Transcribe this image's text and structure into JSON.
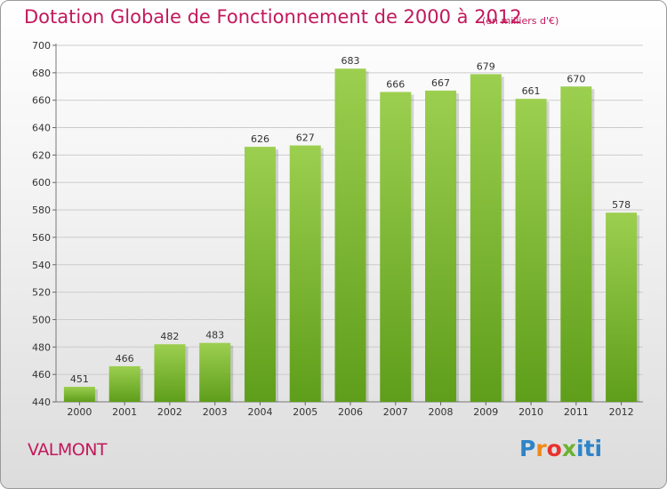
{
  "chart_data": {
    "type": "bar",
    "title": "Dotation Globale de Fonctionnement de 2000 à 2012",
    "unit_note": "(en milliers d'€)",
    "categories": [
      "2000",
      "2001",
      "2002",
      "2003",
      "2004",
      "2005",
      "2006",
      "2007",
      "2008",
      "2009",
      "2010",
      "2011",
      "2012"
    ],
    "values": [
      451,
      466,
      482,
      483,
      626,
      627,
      683,
      666,
      667,
      679,
      661,
      670,
      578
    ],
    "ylim": [
      440,
      700
    ],
    "yticks": [
      440,
      460,
      480,
      500,
      520,
      540,
      560,
      580,
      600,
      620,
      640,
      660,
      680,
      700
    ],
    "xlabel": "",
    "ylabel": "",
    "grid": true,
    "bar_color_top": "#9ccf4f",
    "bar_color_bottom": "#5e9e1a"
  },
  "commune": "VALMONT",
  "logo": {
    "letters": [
      "P",
      "r",
      "o",
      "x",
      "iti"
    ],
    "colors": [
      "#2f84c8",
      "#f08a18",
      "#e8322e",
      "#6bb32e",
      "#2f84c8"
    ]
  },
  "colors": {
    "accent": "#c2185b",
    "grid": "#cccccc"
  }
}
